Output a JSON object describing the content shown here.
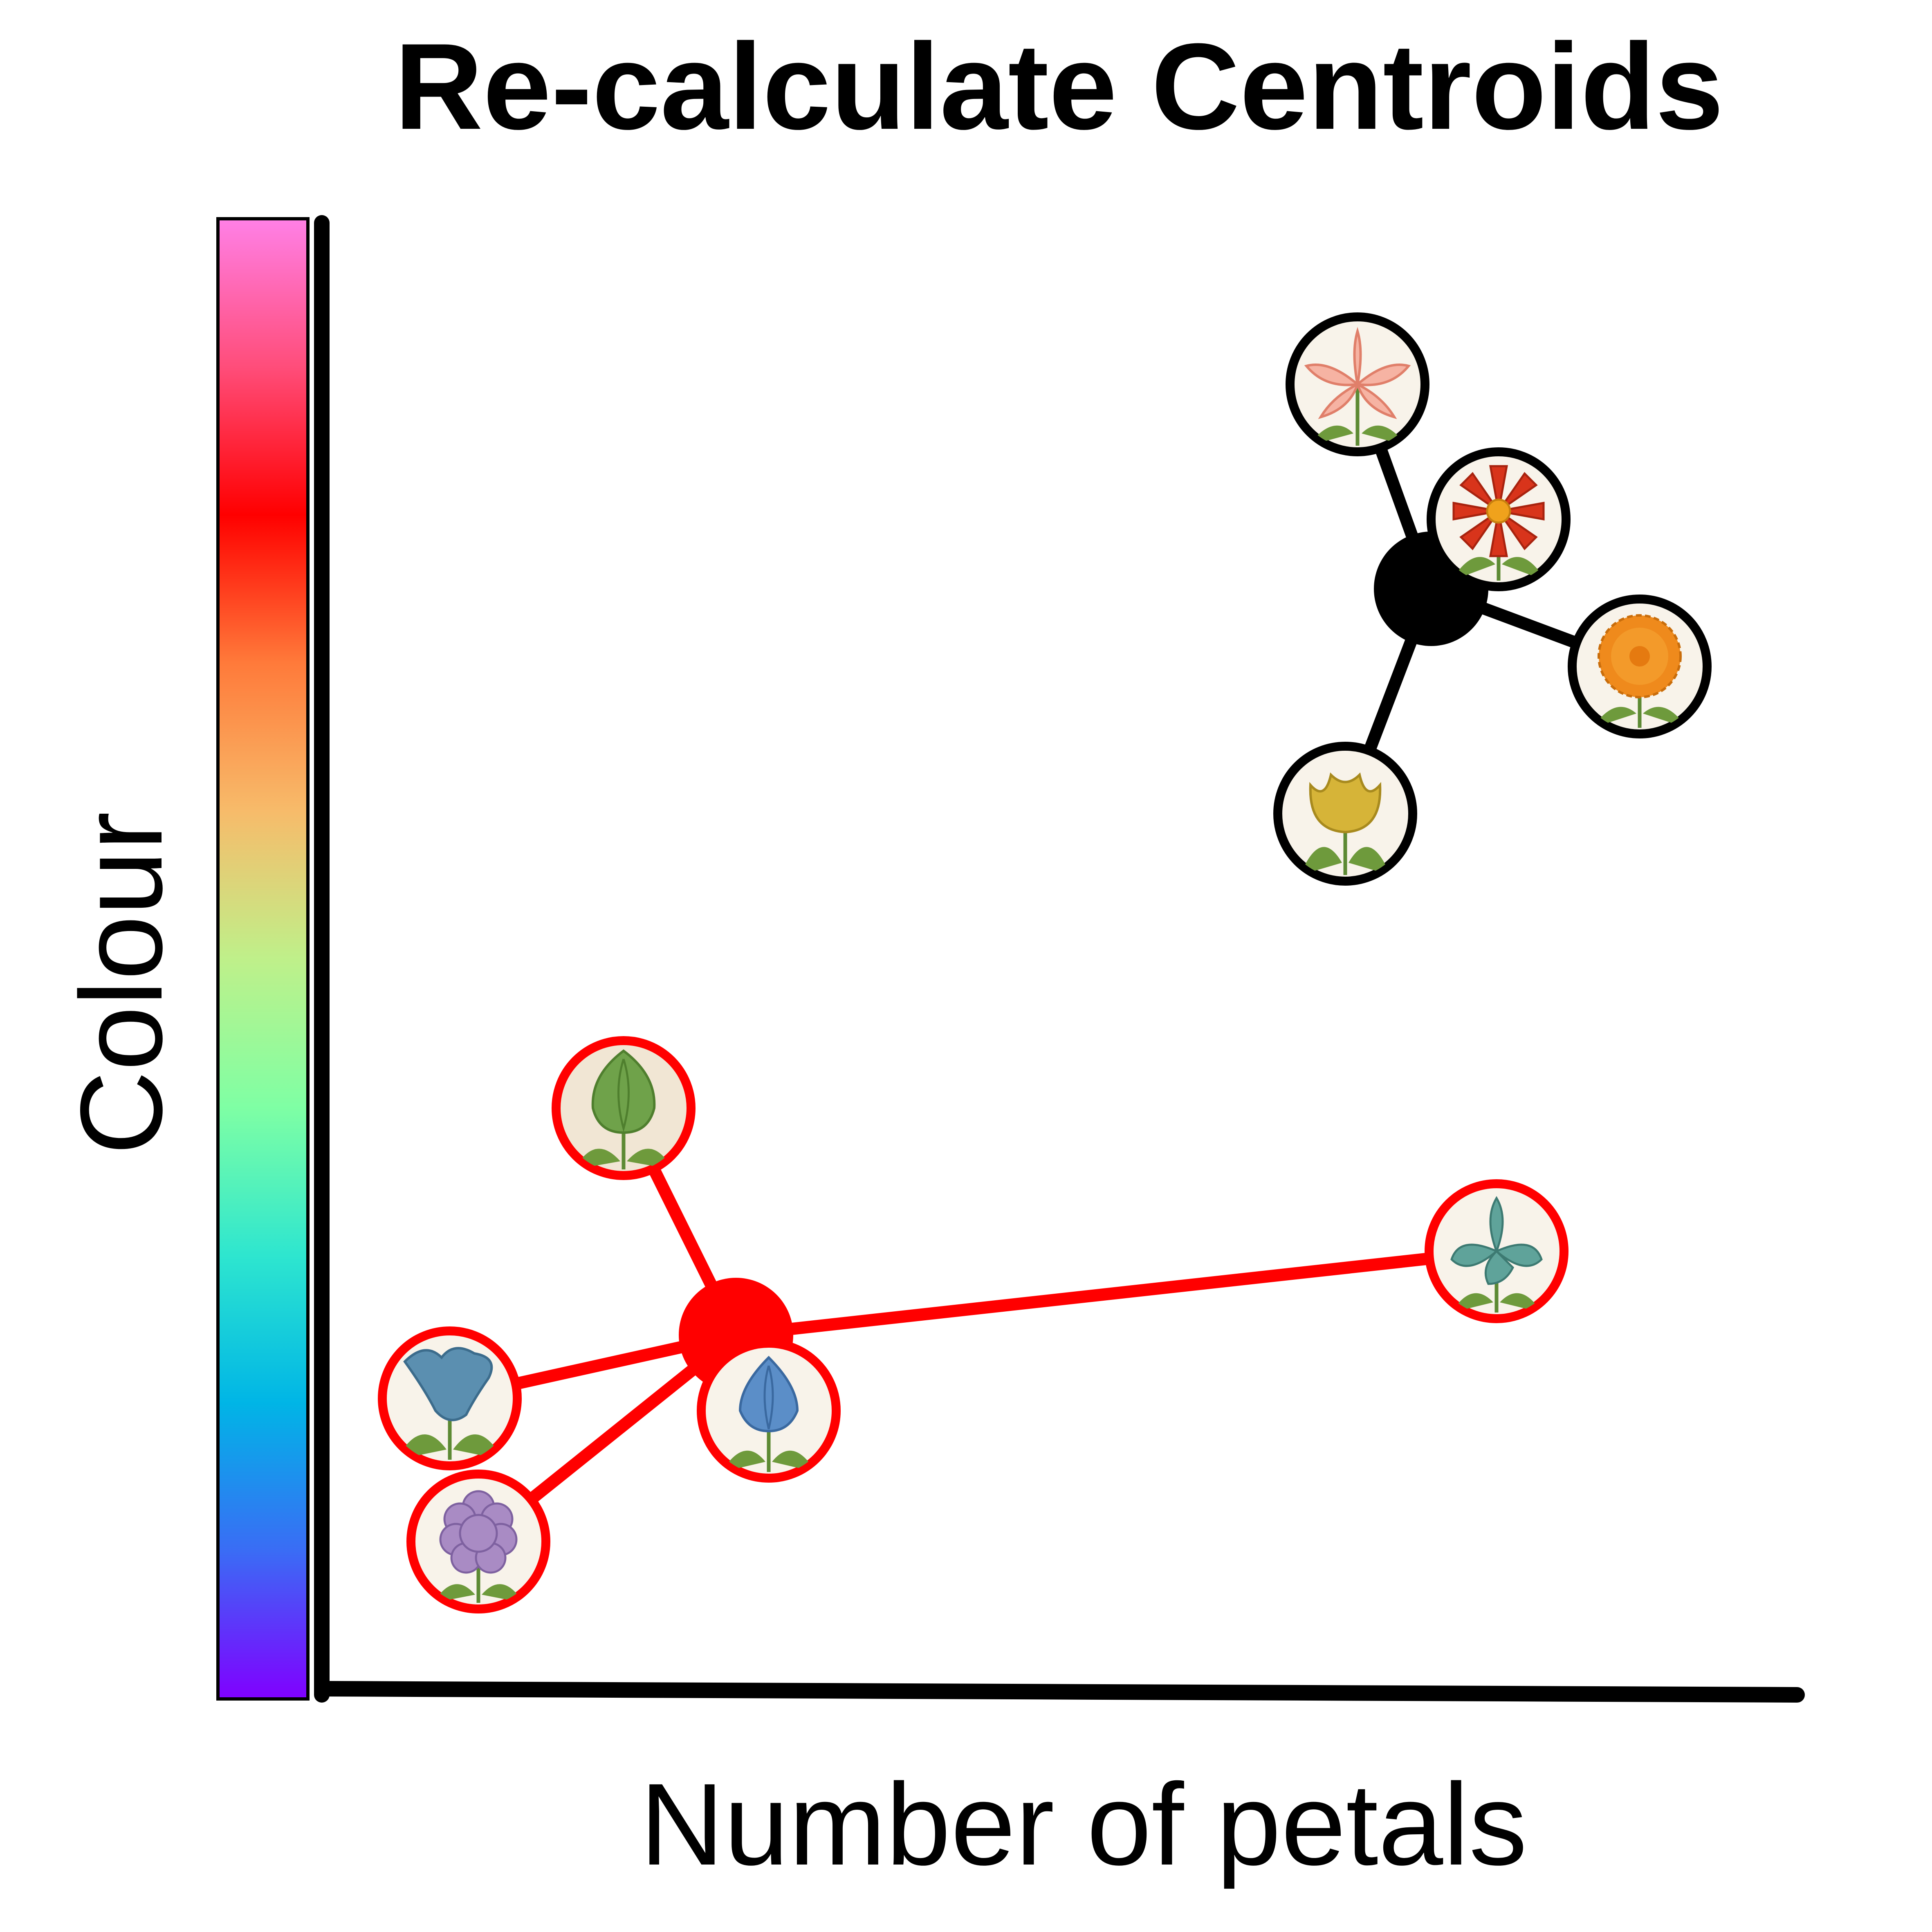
{
  "title": "Re-calculate Centroids",
  "x_axis_label": "Number of petals",
  "y_axis_label": "Colour",
  "colour_scale": [
    "#8000ff",
    "#3a6cf5",
    "#00b5e6",
    "#2ee6cf",
    "#7fffa4",
    "#bff08a",
    "#f7bb6a",
    "#ff7a3a",
    "#ff0000",
    "#ff4d7a",
    "#ff80e6"
  ],
  "clusters": [
    {
      "name": "black",
      "color": "#000000",
      "centroid": "centroid-dot",
      "members": [
        "pink-lily-icon",
        "red-daisy-icon",
        "orange-gerbera-icon",
        "yellow-tulip-icon"
      ]
    },
    {
      "name": "red",
      "color": "#ff0000",
      "centroid": "centroid-dot",
      "members": [
        "green-tulip-icon",
        "blue-iris-icon",
        "blue-bellflower-icon",
        "blue-crocus-icon",
        "purple-hydrangea-icon"
      ]
    }
  ]
}
